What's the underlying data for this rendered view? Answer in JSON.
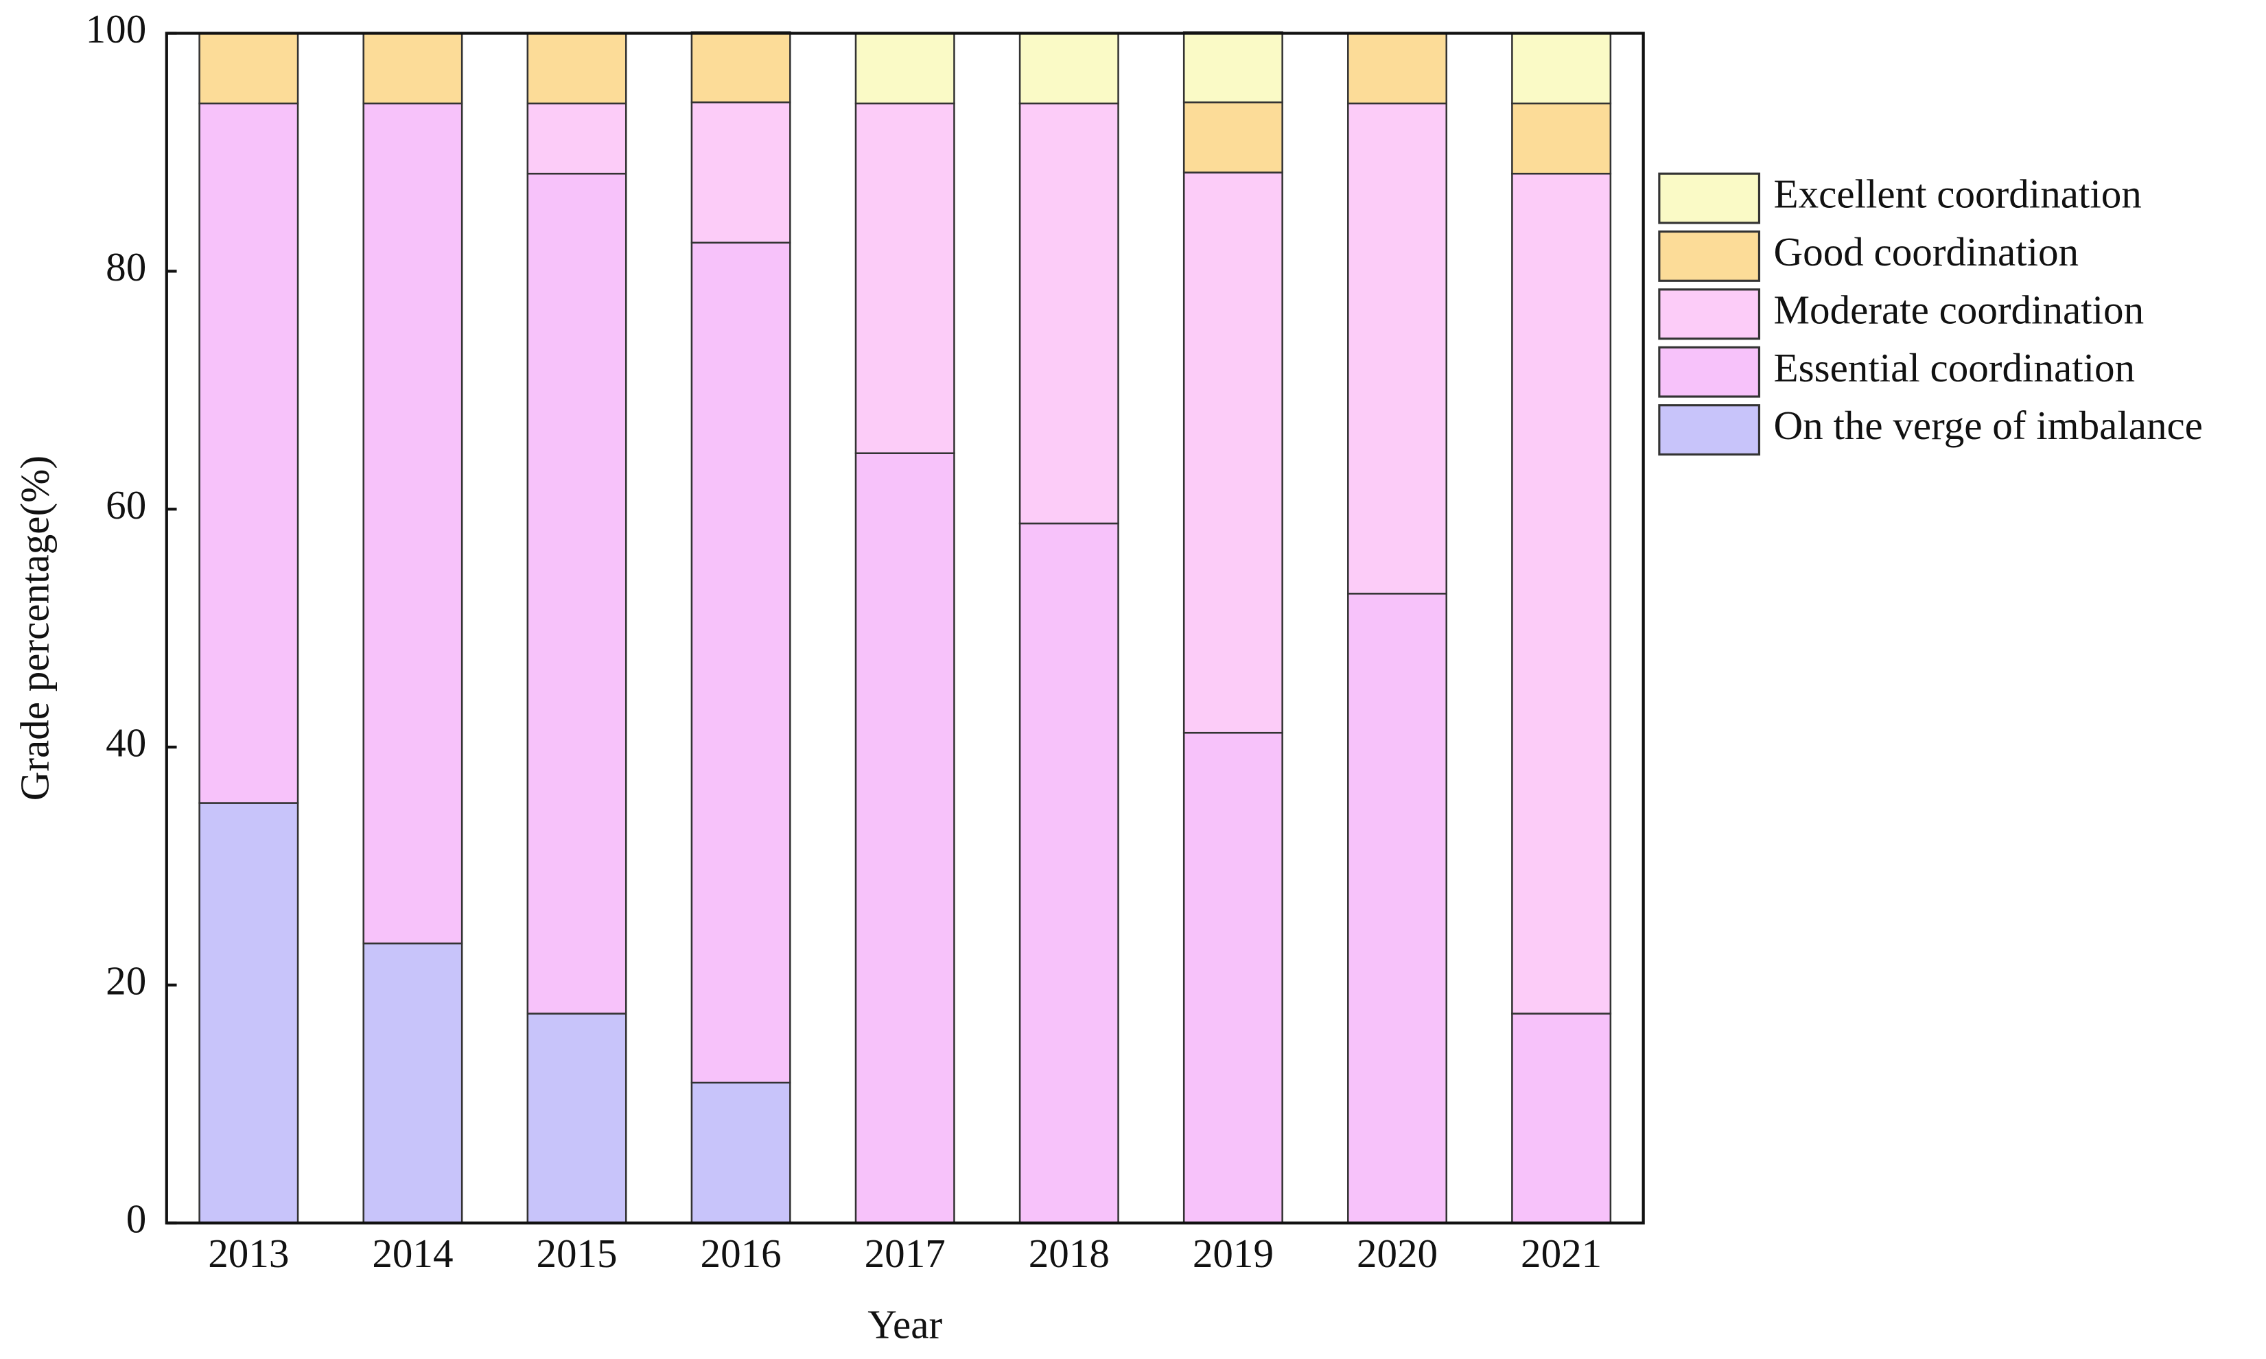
{
  "chart_data": {
    "type": "stacked_bar",
    "x_label": "Year",
    "y_label": "Grade percentage(%)",
    "categories": [
      "2013",
      "2014",
      "2015",
      "2016",
      "2017",
      "2018",
      "2019",
      "2020",
      "2021"
    ],
    "series": [
      {
        "name": "On the verge of imbalance",
        "color": "#c8c4fa",
        "values": [
          35.3,
          23.5,
          17.6,
          11.8,
          0,
          0,
          0,
          0,
          0
        ]
      },
      {
        "name": "Essential coordination",
        "color": "#f7c2fa",
        "values": [
          58.8,
          70.6,
          70.6,
          70.6,
          64.7,
          58.8,
          41.2,
          52.9,
          17.6
        ]
      },
      {
        "name": "Moderate coordination",
        "color": "#fcccf8",
        "values": [
          0,
          0,
          5.9,
          11.8,
          29.4,
          35.3,
          47.1,
          41.2,
          70.6
        ]
      },
      {
        "name": "Good coordination",
        "color": "#fcdc98",
        "values": [
          5.9,
          5.9,
          5.9,
          5.9,
          0,
          0,
          5.9,
          5.9,
          5.9
        ]
      },
      {
        "name": "Excellent coordination",
        "color": "#fafac6",
        "values": [
          0,
          0,
          0,
          0,
          5.9,
          5.9,
          5.9,
          0,
          5.9
        ]
      }
    ],
    "ylim": [
      0,
      100
    ],
    "yticks": [
      0,
      20,
      40,
      60,
      80,
      100
    ],
    "grid": false,
    "legend": "right"
  }
}
